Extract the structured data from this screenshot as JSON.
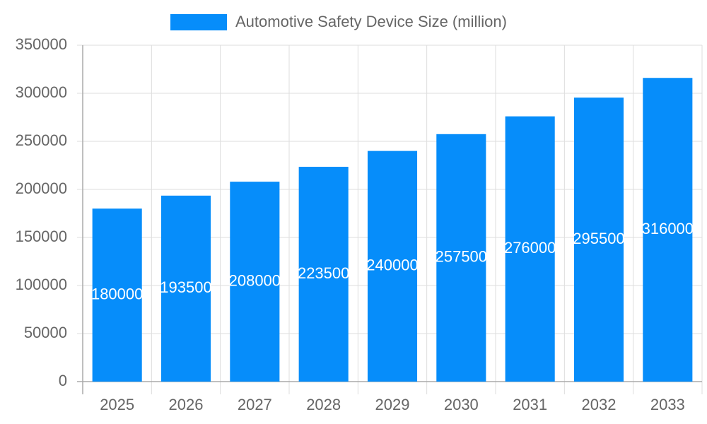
{
  "chart_data": {
    "type": "bar",
    "series": [
      {
        "name": "Automotive Safety Device Size (million)",
        "color": "#068dfa",
        "values": [
          180000,
          193500,
          208000,
          223500,
          240000,
          257500,
          276000,
          295500,
          316000
        ]
      }
    ],
    "categories": [
      "2025",
      "2026",
      "2027",
      "2028",
      "2029",
      "2030",
      "2031",
      "2032",
      "2033"
    ],
    "ylim": [
      0,
      350000
    ],
    "yticks": [
      0,
      50000,
      100000,
      150000,
      200000,
      250000,
      300000,
      350000
    ],
    "grid": true,
    "legend": "top",
    "data_labels": true
  }
}
